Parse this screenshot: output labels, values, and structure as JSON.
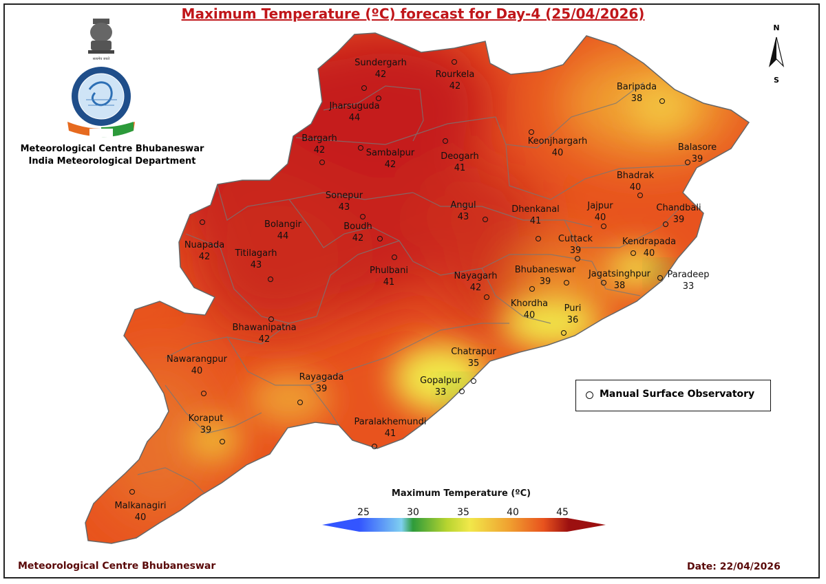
{
  "title": "Maximum Temperature (ºC) forecast for Day-4 (25/04/2026)",
  "organization": {
    "line1": "Meteorological Centre Bhubaneswar",
    "line2": "India Meteorological Department"
  },
  "compass": {
    "north": "N",
    "south": "S"
  },
  "stations": [
    {
      "name": "Sundergarh",
      "value": "42"
    },
    {
      "name": "Rourkela",
      "value": "42"
    },
    {
      "name": "Jharsuguda",
      "value": "44"
    },
    {
      "name": "Baripada",
      "value": "38"
    },
    {
      "name": "Bargarh",
      "value": "42"
    },
    {
      "name": "Sambalpur",
      "value": "42"
    },
    {
      "name": "Deogarh",
      "value": "41"
    },
    {
      "name": "Keonjhargarh",
      "value": "40"
    },
    {
      "name": "Balasore",
      "value": "39"
    },
    {
      "name": "Bhadrak",
      "value": "40"
    },
    {
      "name": "Sonepur",
      "value": "43"
    },
    {
      "name": "Angul",
      "value": "43"
    },
    {
      "name": "Dhenkanal",
      "value": "41"
    },
    {
      "name": "Jajpur",
      "value": "40"
    },
    {
      "name": "Chandbali",
      "value": "39"
    },
    {
      "name": "Bolangir",
      "value": "44"
    },
    {
      "name": "Boudh",
      "value": "42"
    },
    {
      "name": "Nuapada",
      "value": "42"
    },
    {
      "name": "Cuttack",
      "value": "39"
    },
    {
      "name": "Kendrapada",
      "value": "40"
    },
    {
      "name": "Titilagarh",
      "value": "43"
    },
    {
      "name": "Phulbani",
      "value": "41"
    },
    {
      "name": "Bhubaneswar",
      "value": "39"
    },
    {
      "name": "Jagatsinghpur",
      "value": "38"
    },
    {
      "name": "Paradeep",
      "value": "33"
    },
    {
      "name": "Nayagarh",
      "value": "42"
    },
    {
      "name": "Khordha",
      "value": "40"
    },
    {
      "name": "Puri",
      "value": "36"
    },
    {
      "name": "Bhawanipatna",
      "value": "42"
    },
    {
      "name": "Chatrapur",
      "value": "35"
    },
    {
      "name": "Nawarangpur",
      "value": "40"
    },
    {
      "name": "Rayagada",
      "value": "39"
    },
    {
      "name": "Gopalpur",
      "value": "33"
    },
    {
      "name": "Koraput",
      "value": "39"
    },
    {
      "name": "Paralakhemundi",
      "value": "41"
    },
    {
      "name": "Malkanagiri",
      "value": "40"
    }
  ],
  "legend": {
    "observatory_label": "Manual Surface Observatory"
  },
  "colorbar": {
    "title": "Maximum Temperature (ºC)",
    "ticks": [
      "25",
      "30",
      "35",
      "40",
      "45"
    ],
    "colors": {
      "c25": "#3355ff",
      "c28": "#7fd0f0",
      "c30": "#2e9b3a",
      "c34": "#b7d430",
      "c36": "#f1e84a",
      "c38": "#f0a030",
      "c41": "#e8531e",
      "c45": "#9c1010"
    }
  },
  "footer": {
    "left": "Meteorological Centre Bhubaneswar",
    "date": "Date: 22/04/2026"
  }
}
